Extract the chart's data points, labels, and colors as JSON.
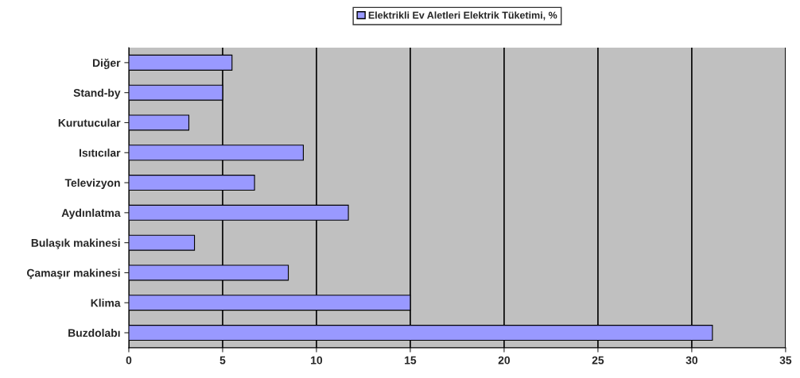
{
  "chart_data": {
    "type": "bar",
    "orientation": "horizontal",
    "categories": [
      "Diğer",
      "Stand-by",
      "Kurutucular",
      "Isıtıcılar",
      "Televizyon",
      "Aydınlatma",
      "Bulaşık makinesi",
      "Çamaşır makinesi",
      "Klima",
      "Buzdolabı"
    ],
    "series": [
      {
        "name": "Elektrikli Ev Aletleri Elektrik Tüketimi, %",
        "color": "#9999ff",
        "values": [
          5.5,
          5.0,
          3.2,
          9.3,
          6.7,
          11.7,
          3.5,
          8.5,
          15.0,
          31.1
        ]
      }
    ],
    "xlim": [
      0,
      35
    ],
    "xticks": [
      0,
      5,
      10,
      15,
      20,
      25,
      30,
      35
    ],
    "grid": "x",
    "legend": "top"
  }
}
